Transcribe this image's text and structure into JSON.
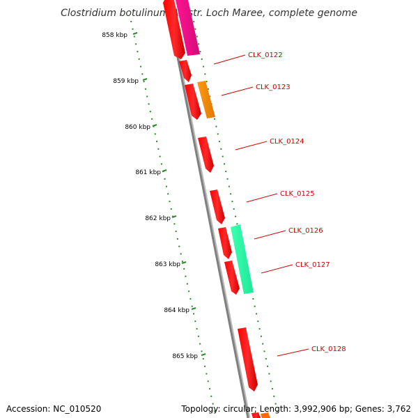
{
  "title": "Clostridium botulinum A3 str. Loch Maree, complete genome",
  "footer": {
    "accession": "Accession: NC_010520",
    "summary": "Topology: circular; Length: 3,992,906 bp; Genes: 3,762"
  },
  "scale": {
    "ticks": [
      "858 kbp",
      "859 kbp",
      "860 kbp",
      "861 kbp",
      "862 kbp",
      "863 kbp",
      "864 kbp",
      "865 kbp"
    ]
  },
  "genes": [
    {
      "label": "CLK_0122"
    },
    {
      "label": "CLK_0123"
    },
    {
      "label": "CLK_0124"
    },
    {
      "label": "CLK_0125"
    },
    {
      "label": "CLK_0126"
    },
    {
      "label": "CLK_0127"
    },
    {
      "label": "CLK_0128"
    }
  ],
  "colors": {
    "backbone": "#8a8a8a",
    "tick_marks": "#2a8a2a",
    "gene_red": "#ff0000",
    "gene_magenta": "#ff1493",
    "gene_orange": "#ff8c00",
    "gene_green": "#33ffaa",
    "label_red": "#cc0000"
  }
}
